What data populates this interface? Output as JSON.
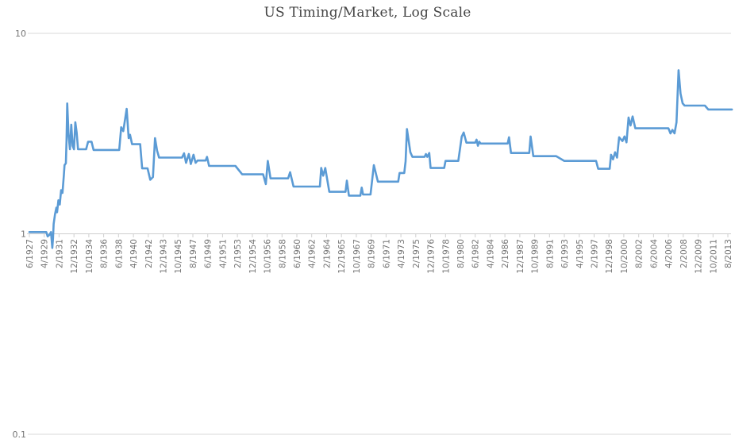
{
  "chart_data": {
    "type": "line",
    "title": "US Timing/Market, Log Scale",
    "xlabel": "",
    "ylabel": "",
    "scale": "log",
    "ylim": [
      0.1,
      10
    ],
    "grid": "horizontal-only",
    "legend": "none",
    "y_tick_labels": [
      "10",
      "1",
      "0.1"
    ],
    "y_tick_values": [
      10,
      1,
      0.1
    ],
    "x_tick_interval_months": 22,
    "x_tick_labels": [
      "6/1927",
      "4/1929",
      "2/1931",
      "12/1932",
      "10/1934",
      "8/1936",
      "6/1938",
      "4/1940",
      "2/1942",
      "12/1943",
      "10/1945",
      "8/1947",
      "6/1949",
      "4/1951",
      "2/1953",
      "12/1954",
      "10/1956",
      "8/1958",
      "6/1960",
      "4/1962",
      "2/1964",
      "12/1965",
      "10/1967",
      "8/1969",
      "6/1971",
      "4/1973",
      "2/1975",
      "12/1976",
      "10/1978",
      "8/1980",
      "6/1982",
      "4/1984",
      "2/1986",
      "12/1987",
      "10/1989",
      "8/1991",
      "6/1993",
      "4/1995",
      "2/1997",
      "12/1998",
      "10/2000",
      "8/2002",
      "6/2004",
      "4/2006",
      "2/2008",
      "12/2009",
      "10/2011",
      "8/2013"
    ],
    "series": [
      {
        "name": "US Timing/Market",
        "points": [
          [
            "1927-06",
            1.02
          ],
          [
            "1929-07",
            1.02
          ],
          [
            "1929-09",
            0.97
          ],
          [
            "1929-12",
            0.99
          ],
          [
            "1930-02",
            1.02
          ],
          [
            "1930-03",
            0.93
          ],
          [
            "1930-04",
            0.85
          ],
          [
            "1930-05",
            0.95
          ],
          [
            "1930-06",
            1.12
          ],
          [
            "1930-08",
            1.25
          ],
          [
            "1930-10",
            1.35
          ],
          [
            "1930-11",
            1.28
          ],
          [
            "1931-01",
            1.47
          ],
          [
            "1931-03",
            1.4
          ],
          [
            "1931-05",
            1.65
          ],
          [
            "1931-07",
            1.6
          ],
          [
            "1931-09",
            1.95
          ],
          [
            "1931-10",
            2.2
          ],
          [
            "1931-12",
            2.25
          ],
          [
            "1932-01",
            2.9
          ],
          [
            "1932-02",
            4.47
          ],
          [
            "1932-04",
            3.1
          ],
          [
            "1932-06",
            2.64
          ],
          [
            "1932-08",
            3.5
          ],
          [
            "1932-10",
            2.75
          ],
          [
            "1932-12",
            2.64
          ],
          [
            "1933-02",
            3.6
          ],
          [
            "1933-04",
            3.2
          ],
          [
            "1933-06",
            2.64
          ],
          [
            "1934-06",
            2.64
          ],
          [
            "1934-09",
            2.88
          ],
          [
            "1935-02",
            2.88
          ],
          [
            "1935-05",
            2.62
          ],
          [
            "1938-07",
            2.62
          ],
          [
            "1938-10",
            3.4
          ],
          [
            "1939-01",
            3.25
          ],
          [
            "1939-06",
            4.2
          ],
          [
            "1939-09",
            3.0
          ],
          [
            "1939-11",
            3.12
          ],
          [
            "1940-02",
            2.8
          ],
          [
            "1941-02",
            2.8
          ],
          [
            "1941-05",
            2.12
          ],
          [
            "1942-01",
            2.12
          ],
          [
            "1942-05",
            1.86
          ],
          [
            "1942-09",
            1.92
          ],
          [
            "1942-12",
            3.0
          ],
          [
            "1943-03",
            2.6
          ],
          [
            "1943-06",
            2.4
          ],
          [
            "1946-04",
            2.4
          ],
          [
            "1946-07",
            2.52
          ],
          [
            "1946-10",
            2.26
          ],
          [
            "1947-02",
            2.5
          ],
          [
            "1947-05",
            2.23
          ],
          [
            "1947-09",
            2.48
          ],
          [
            "1947-12",
            2.26
          ],
          [
            "1948-03",
            2.32
          ],
          [
            "1949-03",
            2.32
          ],
          [
            "1949-05",
            2.42
          ],
          [
            "1949-08",
            2.18
          ],
          [
            "1952-11",
            2.18
          ],
          [
            "1953-09",
            1.98
          ],
          [
            "1956-04",
            1.98
          ],
          [
            "1956-08",
            1.77
          ],
          [
            "1956-11",
            2.31
          ],
          [
            "1957-03",
            1.89
          ],
          [
            "1959-05",
            1.89
          ],
          [
            "1959-08",
            2.03
          ],
          [
            "1960-01",
            1.72
          ],
          [
            "1963-04",
            1.72
          ],
          [
            "1963-06",
            2.13
          ],
          [
            "1963-09",
            1.95
          ],
          [
            "1963-12",
            2.13
          ],
          [
            "1964-06",
            1.62
          ],
          [
            "1966-06",
            1.62
          ],
          [
            "1966-08",
            1.84
          ],
          [
            "1966-11",
            1.55
          ],
          [
            "1968-04",
            1.55
          ],
          [
            "1968-06",
            1.7
          ],
          [
            "1968-08",
            1.57
          ],
          [
            "1969-07",
            1.57
          ],
          [
            "1969-12",
            2.2
          ],
          [
            "1970-06",
            1.82
          ],
          [
            "1972-12",
            1.82
          ],
          [
            "1973-02",
            2.01
          ],
          [
            "1973-09",
            2.01
          ],
          [
            "1973-11",
            2.3
          ],
          [
            "1974-01",
            3.33
          ],
          [
            "1974-06",
            2.55
          ],
          [
            "1974-09",
            2.42
          ],
          [
            "1976-03",
            2.42
          ],
          [
            "1976-05",
            2.5
          ],
          [
            "1976-07",
            2.42
          ],
          [
            "1976-10",
            2.53
          ],
          [
            "1976-12",
            2.13
          ],
          [
            "1978-08",
            2.13
          ],
          [
            "1978-10",
            2.31
          ],
          [
            "1980-05",
            2.31
          ],
          [
            "1980-10",
            3.05
          ],
          [
            "1981-01",
            3.2
          ],
          [
            "1981-05",
            2.85
          ],
          [
            "1982-06",
            2.85
          ],
          [
            "1982-08",
            2.95
          ],
          [
            "1982-10",
            2.75
          ],
          [
            "1982-12",
            2.88
          ],
          [
            "1983-02",
            2.82
          ],
          [
            "1986-06",
            2.82
          ],
          [
            "1986-08",
            3.03
          ],
          [
            "1986-11",
            2.53
          ],
          [
            "1989-02",
            2.53
          ],
          [
            "1989-04",
            3.06
          ],
          [
            "1989-08",
            2.44
          ],
          [
            "1992-06",
            2.44
          ],
          [
            "1993-06",
            2.31
          ],
          [
            "1997-05",
            2.31
          ],
          [
            "1997-08",
            2.11
          ],
          [
            "1999-01",
            2.11
          ],
          [
            "1999-03",
            2.48
          ],
          [
            "1999-06",
            2.35
          ],
          [
            "1999-09",
            2.55
          ],
          [
            "1999-12",
            2.4
          ],
          [
            "2000-03",
            3.03
          ],
          [
            "2000-08",
            2.9
          ],
          [
            "2000-11",
            3.06
          ],
          [
            "2001-02",
            2.86
          ],
          [
            "2001-05",
            3.8
          ],
          [
            "2001-08",
            3.47
          ],
          [
            "2001-11",
            3.85
          ],
          [
            "2002-03",
            3.36
          ],
          [
            "2006-04",
            3.36
          ],
          [
            "2006-07",
            3.17
          ],
          [
            "2006-10",
            3.3
          ],
          [
            "2007-01",
            3.17
          ],
          [
            "2007-04",
            3.6
          ],
          [
            "2007-07",
            6.55
          ],
          [
            "2007-10",
            5.0
          ],
          [
            "2008-01",
            4.48
          ],
          [
            "2008-04",
            4.36
          ],
          [
            "2010-10",
            4.36
          ],
          [
            "2011-03",
            4.17
          ],
          [
            "2014-02",
            4.17
          ]
        ]
      }
    ],
    "colors": {
      "line": "#5B9BD5",
      "gridline": "#d9d9d9",
      "axis": "#cfcfcf",
      "tick_label": "#757575",
      "title": "#444444"
    }
  }
}
